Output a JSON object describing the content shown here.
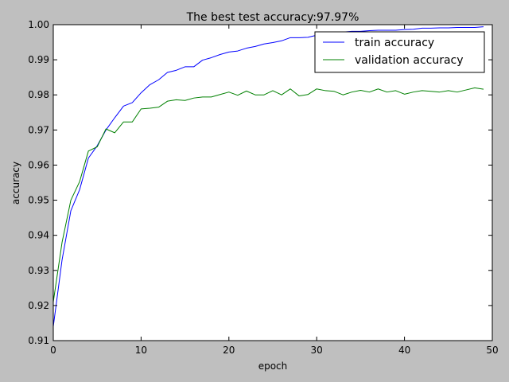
{
  "chart_data": {
    "type": "line",
    "title": "The best test accuracy:97.97%",
    "xlabel": "epoch",
    "ylabel": "accuracy",
    "xlim": [
      0,
      50
    ],
    "ylim": [
      0.91,
      1.0
    ],
    "xticks": [
      0,
      10,
      20,
      30,
      40,
      50
    ],
    "yticks": [
      0.91,
      0.92,
      0.93,
      0.94,
      0.95,
      0.96,
      0.97,
      0.98,
      0.99,
      1.0
    ],
    "xtick_labels": [
      "0",
      "10",
      "20",
      "30",
      "40",
      "50"
    ],
    "ytick_labels": [
      "0.91",
      "0.92",
      "0.93",
      "0.94",
      "0.95",
      "0.96",
      "0.97",
      "0.98",
      "0.99",
      "1.00"
    ],
    "grid": false,
    "legend_position": "top-right",
    "x": [
      0,
      1,
      2,
      3,
      4,
      5,
      6,
      7,
      8,
      9,
      10,
      11,
      12,
      13,
      14,
      15,
      16,
      17,
      18,
      19,
      20,
      21,
      22,
      23,
      24,
      25,
      26,
      27,
      28,
      29,
      30,
      31,
      32,
      33,
      34,
      35,
      36,
      37,
      38,
      39,
      40,
      41,
      42,
      43,
      44,
      45,
      46,
      47,
      48,
      49
    ],
    "series": [
      {
        "name": "train accuracy",
        "color": "#0000ff",
        "values": [
          0.914,
          0.933,
          0.947,
          0.953,
          0.962,
          0.9655,
          0.97,
          0.9735,
          0.9768,
          0.9778,
          0.9806,
          0.9829,
          0.9843,
          0.9864,
          0.987,
          0.988,
          0.988,
          0.9899,
          0.9906,
          0.9915,
          0.9922,
          0.9925,
          0.9933,
          0.9938,
          0.9945,
          0.9949,
          0.9954,
          0.9963,
          0.9963,
          0.9964,
          0.997,
          0.9974,
          0.9977,
          0.9979,
          0.9981,
          0.9981,
          0.9983,
          0.9984,
          0.9984,
          0.9984,
          0.9986,
          0.9987,
          0.999,
          0.999,
          0.9991,
          0.9991,
          0.9992,
          0.9992,
          0.9992,
          0.9994
        ]
      },
      {
        "name": "validation accuracy",
        "color": "#008000",
        "values": [
          0.921,
          0.938,
          0.95,
          0.9553,
          0.964,
          0.9652,
          0.9703,
          0.9692,
          0.9723,
          0.9723,
          0.976,
          0.9762,
          0.9765,
          0.9782,
          0.9786,
          0.9784,
          0.9791,
          0.9794,
          0.9794,
          0.9801,
          0.9808,
          0.9799,
          0.9811,
          0.98,
          0.98,
          0.9812,
          0.98,
          0.9817,
          0.9797,
          0.9801,
          0.9817,
          0.9812,
          0.981,
          0.98,
          0.9808,
          0.9813,
          0.9808,
          0.9817,
          0.9808,
          0.9812,
          0.9802,
          0.9808,
          0.9812,
          0.981,
          0.9808,
          0.9812,
          0.9808,
          0.9814,
          0.982,
          0.9816
        ]
      }
    ]
  }
}
